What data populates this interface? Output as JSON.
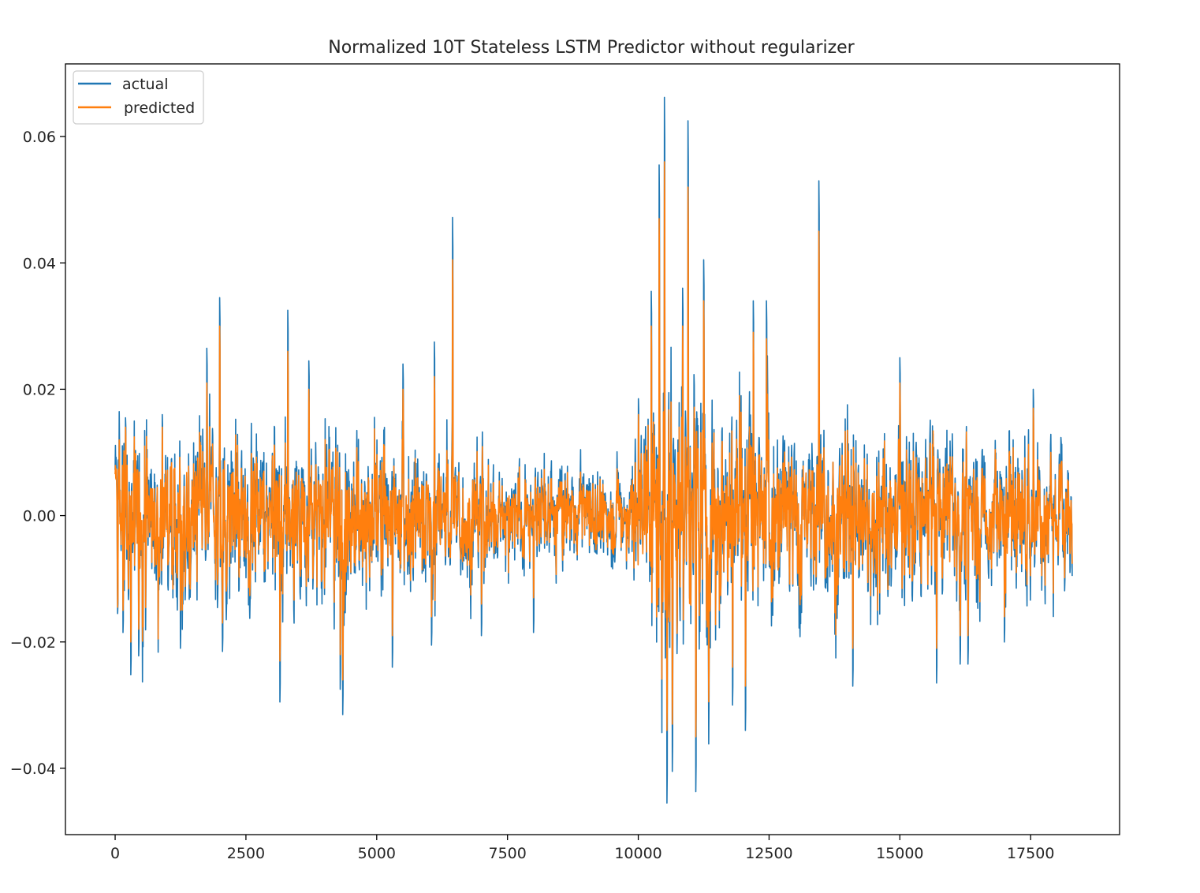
{
  "chart_data": {
    "type": "line",
    "title": "Normalized 10T Stateless LSTM Predictor without regularizer",
    "xlabel": "",
    "ylabel": "",
    "xlim": [
      -950,
      19200
    ],
    "ylim": [
      -0.0505,
      0.0715
    ],
    "x_ticks": [
      0,
      2500,
      5000,
      7500,
      10000,
      12500,
      15000,
      17500
    ],
    "x_tick_labels": [
      "0",
      "2500",
      "5000",
      "7500",
      "10000",
      "12500",
      "15000",
      "17500"
    ],
    "y_ticks": [
      -0.04,
      -0.02,
      0.0,
      0.02,
      0.04,
      0.06
    ],
    "y_tick_labels": [
      "−0.04",
      "−0.02",
      "0.00",
      "0.02",
      "0.04",
      "0.06"
    ],
    "grid": false,
    "legend_position": "upper-left",
    "n_points": 18300,
    "series": [
      {
        "name": "actual",
        "color": "#1f77b4"
      },
      {
        "name": "predicted",
        "color": "#ff7f0e"
      }
    ],
    "peaks": [
      {
        "x": 50,
        "actual": -0.0155,
        "predicted": -0.0145
      },
      {
        "x": 150,
        "actual": -0.0185,
        "predicted": -0.015
      },
      {
        "x": 200,
        "actual": 0.0155,
        "predicted": 0.014
      },
      {
        "x": 300,
        "actual": -0.0252,
        "predicted": -0.02
      },
      {
        "x": 450,
        "actual": -0.0222,
        "predicted": -0.018
      },
      {
        "x": 900,
        "actual": 0.016,
        "predicted": 0.014
      },
      {
        "x": 1250,
        "actual": -0.021,
        "predicted": -0.015
      },
      {
        "x": 1750,
        "actual": 0.0265,
        "predicted": 0.021
      },
      {
        "x": 2000,
        "actual": 0.0345,
        "predicted": 0.03
      },
      {
        "x": 2050,
        "actual": -0.0215,
        "predicted": -0.017
      },
      {
        "x": 3150,
        "actual": -0.0295,
        "predicted": -0.023
      },
      {
        "x": 3300,
        "actual": 0.0325,
        "predicted": 0.026
      },
      {
        "x": 3700,
        "actual": 0.0245,
        "predicted": 0.02
      },
      {
        "x": 4300,
        "actual": -0.0275,
        "predicted": -0.022
      },
      {
        "x": 4350,
        "actual": -0.0315,
        "predicted": -0.026
      },
      {
        "x": 5300,
        "actual": -0.024,
        "predicted": -0.019
      },
      {
        "x": 5500,
        "actual": 0.024,
        "predicted": 0.02
      },
      {
        "x": 6050,
        "actual": -0.0205,
        "predicted": -0.016
      },
      {
        "x": 6100,
        "actual": 0.0275,
        "predicted": 0.022
      },
      {
        "x": 6450,
        "actual": 0.0472,
        "predicted": 0.0405
      },
      {
        "x": 7000,
        "actual": -0.019,
        "predicted": -0.014
      },
      {
        "x": 8000,
        "actual": -0.0185,
        "predicted": -0.013
      },
      {
        "x": 10000,
        "actual": 0.0185,
        "predicted": 0.016
      },
      {
        "x": 10250,
        "actual": 0.0355,
        "predicted": 0.03
      },
      {
        "x": 10400,
        "actual": 0.0555,
        "predicted": 0.047
      },
      {
        "x": 10500,
        "actual": 0.0662,
        "predicted": 0.056
      },
      {
        "x": 10550,
        "actual": -0.0455,
        "predicted": -0.034
      },
      {
        "x": 10650,
        "actual": -0.0405,
        "predicted": -0.033
      },
      {
        "x": 10850,
        "actual": 0.036,
        "predicted": 0.03
      },
      {
        "x": 10950,
        "actual": 0.0625,
        "predicted": 0.052
      },
      {
        "x": 11100,
        "actual": -0.0437,
        "predicted": -0.035
      },
      {
        "x": 11250,
        "actual": 0.0405,
        "predicted": 0.034
      },
      {
        "x": 11800,
        "actual": -0.03,
        "predicted": -0.024
      },
      {
        "x": 12050,
        "actual": -0.034,
        "predicted": -0.027
      },
      {
        "x": 12200,
        "actual": 0.034,
        "predicted": 0.029
      },
      {
        "x": 12450,
        "actual": 0.034,
        "predicted": 0.028
      },
      {
        "x": 13450,
        "actual": 0.053,
        "predicted": 0.045
      },
      {
        "x": 14100,
        "actual": -0.027,
        "predicted": -0.021
      },
      {
        "x": 15000,
        "actual": 0.025,
        "predicted": 0.021
      },
      {
        "x": 15700,
        "actual": -0.0265,
        "predicted": -0.021
      },
      {
        "x": 16150,
        "actual": -0.0235,
        "predicted": -0.019
      },
      {
        "x": 16300,
        "actual": -0.0235,
        "predicted": -0.019
      },
      {
        "x": 17000,
        "actual": -0.02,
        "predicted": -0.016
      },
      {
        "x": 17550,
        "actual": 0.02,
        "predicted": 0.017
      },
      {
        "x": 18250,
        "actual": -0.009,
        "predicted": -0.006
      }
    ]
  }
}
